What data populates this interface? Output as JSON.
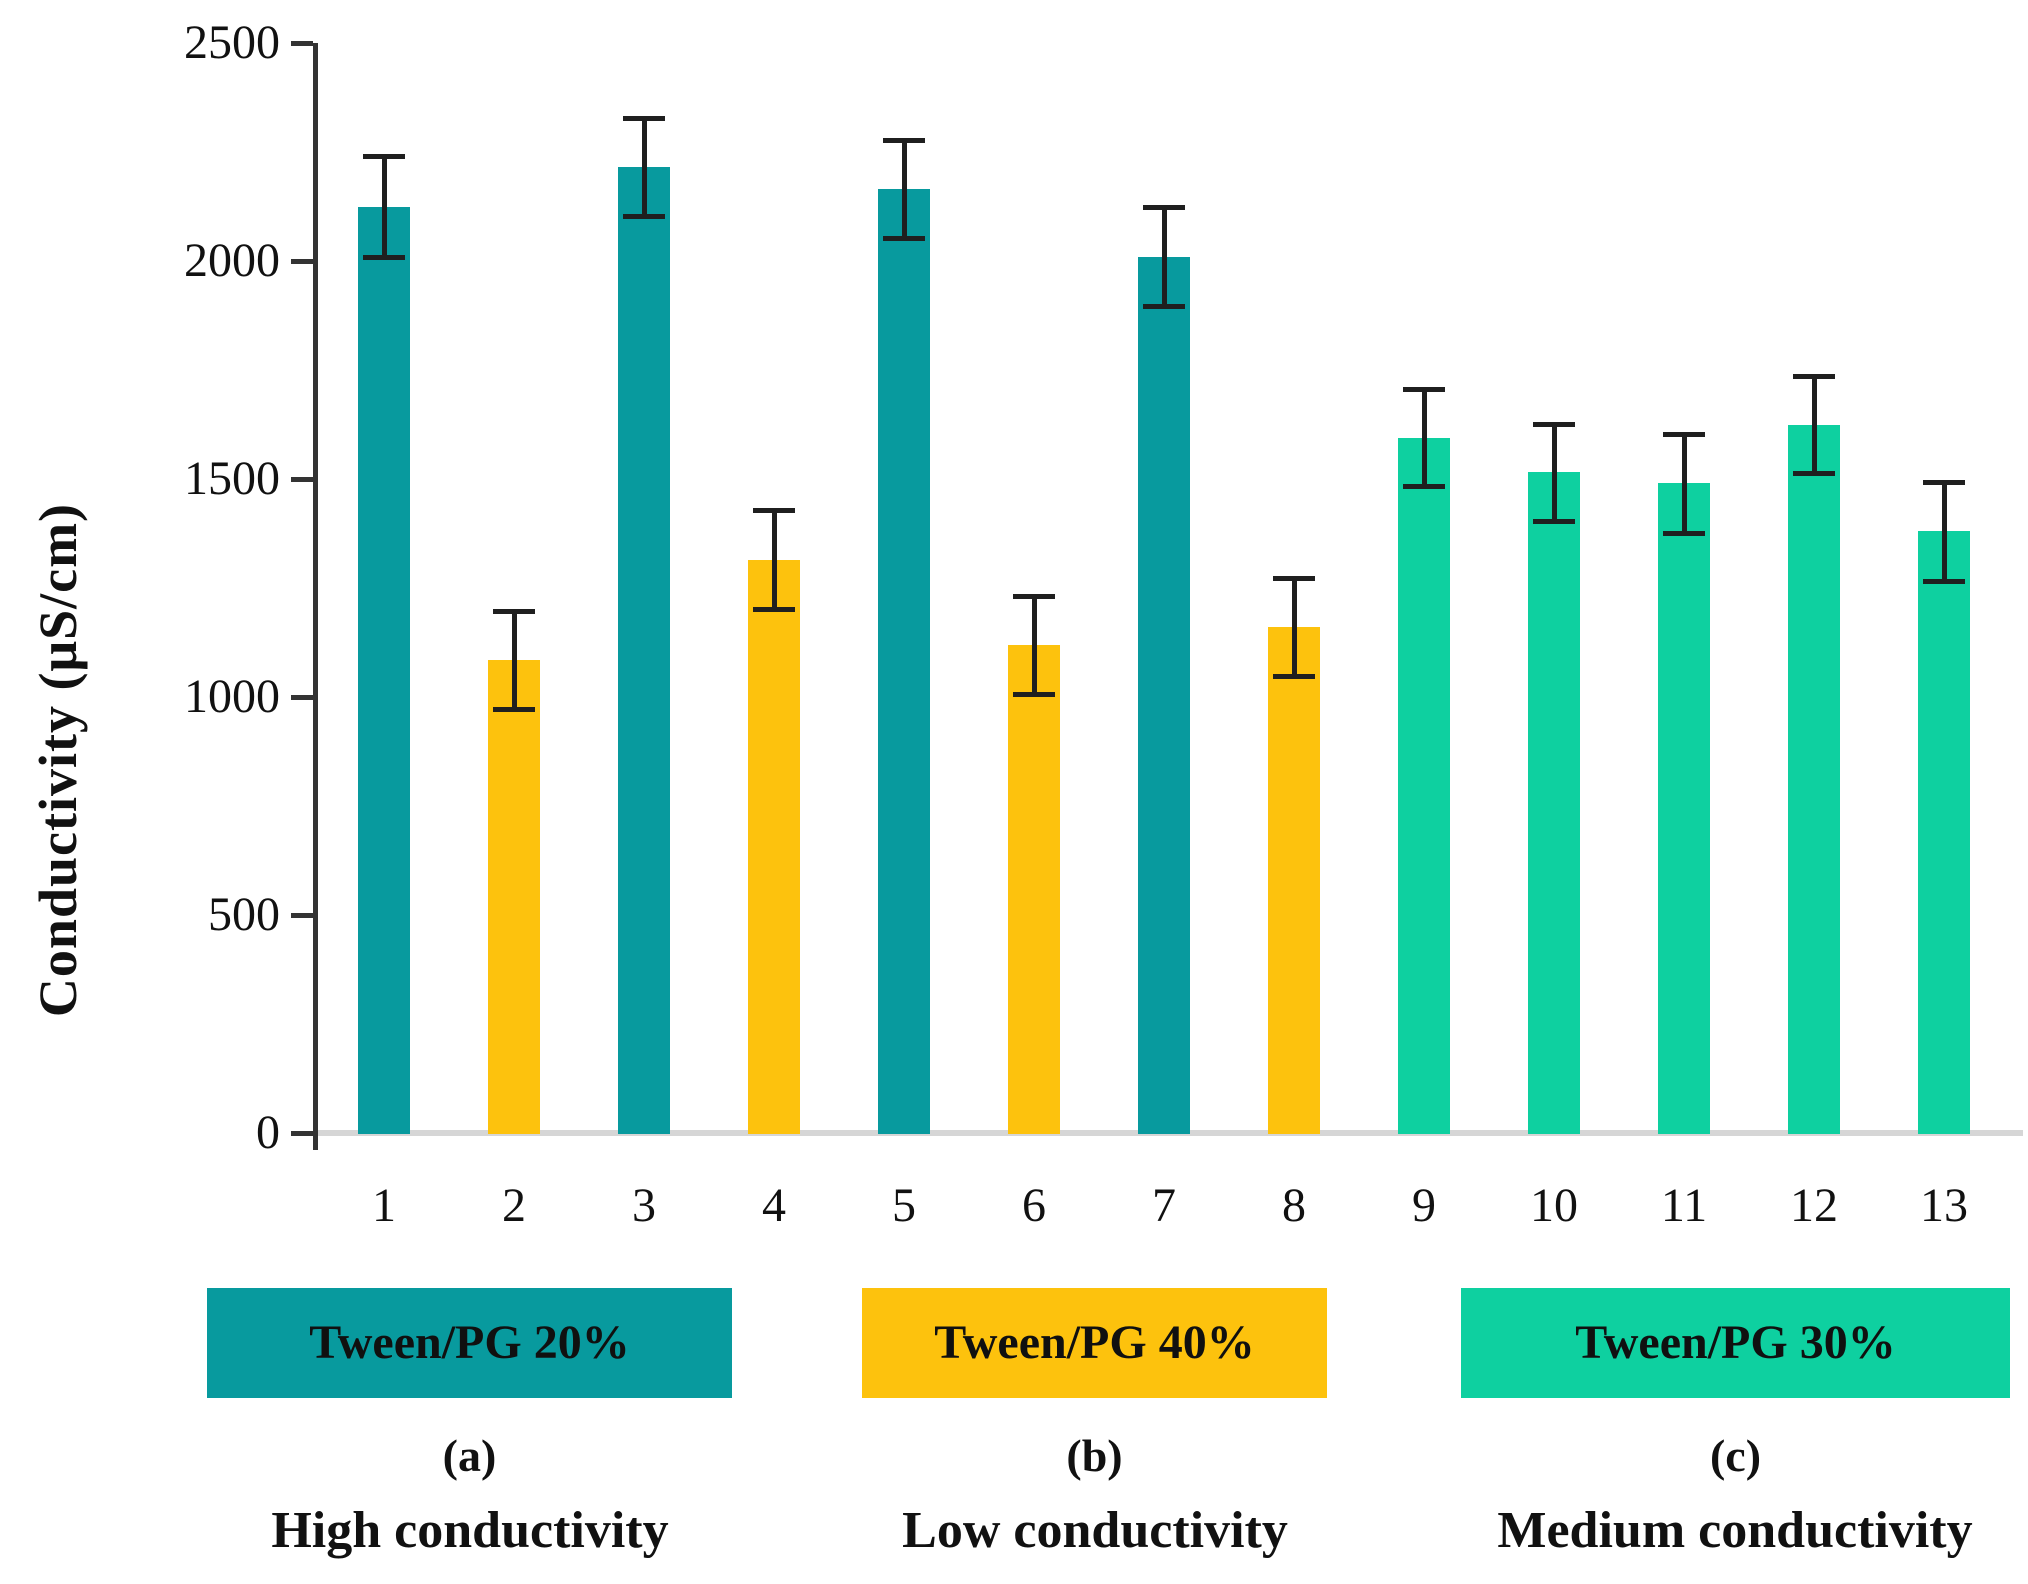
{
  "chart_data": {
    "type": "bar",
    "title": "",
    "ylabel": "Conductivity (μS/cm)",
    "xlabel": "",
    "ylim": [
      0,
      2500
    ],
    "yticks": [
      0,
      500,
      1000,
      1500,
      2000,
      2500
    ],
    "grid": false,
    "legend_position": "bottom",
    "error_bars": true,
    "groups": [
      {
        "id": "tween20",
        "label": "Tween/PG 20%",
        "color": "#089a9e"
      },
      {
        "id": "tween40",
        "label": "Tween/PG 40%",
        "color": "#fdc20d"
      },
      {
        "id": "tween30",
        "label": "Tween/PG 30%",
        "color": "#0ed0a0"
      }
    ],
    "bars": [
      {
        "category": "1",
        "value": 2125,
        "error": 115,
        "group": 0
      },
      {
        "category": "2",
        "value": 1085,
        "error": 113,
        "group": 1
      },
      {
        "category": "3",
        "value": 2215,
        "error": 112,
        "group": 0
      },
      {
        "category": "4",
        "value": 1315,
        "error": 113,
        "group": 1
      },
      {
        "category": "5",
        "value": 2165,
        "error": 113,
        "group": 0
      },
      {
        "category": "6",
        "value": 1120,
        "error": 112,
        "group": 1
      },
      {
        "category": "7",
        "value": 2010,
        "error": 114,
        "group": 0
      },
      {
        "category": "8",
        "value": 1160,
        "error": 112,
        "group": 1
      },
      {
        "category": "9",
        "value": 1595,
        "error": 112,
        "group": 2
      },
      {
        "category": "10",
        "value": 1515,
        "error": 112,
        "group": 2
      },
      {
        "category": "11",
        "value": 1490,
        "error": 113,
        "group": 2
      },
      {
        "category": "12",
        "value": 1625,
        "error": 112,
        "group": 2
      },
      {
        "category": "13",
        "value": 1380,
        "error": 113,
        "group": 2
      }
    ]
  },
  "captions": [
    {
      "letter": "(a)",
      "text": "High conductivity"
    },
    {
      "letter": "(b)",
      "text": "Low conductivity"
    },
    {
      "letter": "(c)",
      "text": "Medium conductivity"
    }
  ],
  "colors": {
    "axis": "#333333",
    "baseline": "#d6d6d6",
    "error_bar": "#1f1f1f",
    "text": "#111111"
  }
}
